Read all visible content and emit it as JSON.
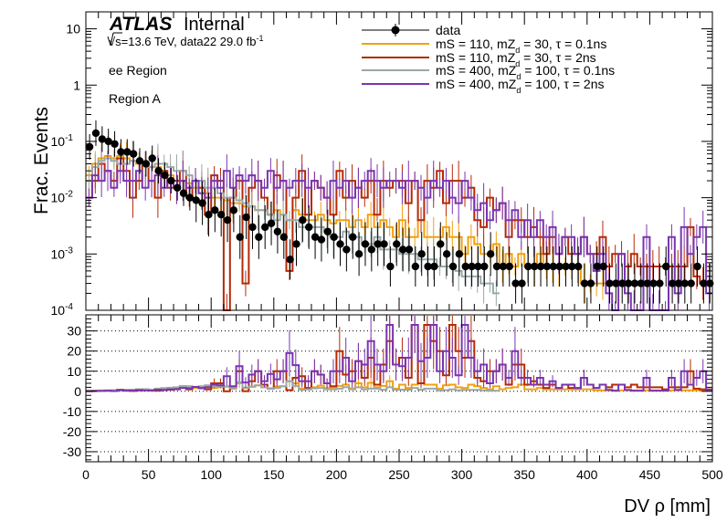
{
  "chart_data": [
    {
      "type": "histogram",
      "panel": "main",
      "title": "",
      "brand": "ATLAS",
      "status": "Internal",
      "energy_text": "√s=13.6 TeV, data22 29.0 fb",
      "energy_exp": "-1",
      "annotations": [
        "ee Region",
        "Region A"
      ],
      "ylabel": "Frac. Events",
      "yscale": "log",
      "ylim": [
        0.0001,
        20
      ],
      "y_ticks": [
        {
          "value": 0.0001,
          "base": "10",
          "exp": "-4"
        },
        {
          "value": 0.001,
          "base": "10",
          "exp": "-3"
        },
        {
          "value": 0.01,
          "base": "10",
          "exp": "-2"
        },
        {
          "value": 0.1,
          "base": "10",
          "exp": "-1"
        },
        {
          "value": 1,
          "base": "1",
          "exp": ""
        },
        {
          "value": 10,
          "base": "10",
          "exp": ""
        }
      ],
      "xlim": [
        0,
        500
      ],
      "legend_position": "top-right",
      "series": [
        {
          "name": "data",
          "style": "points",
          "color": "#000000",
          "x": [
            3,
            8,
            13,
            18,
            23,
            28,
            33,
            38,
            43,
            48,
            53,
            58,
            63,
            68,
            73,
            78,
            83,
            88,
            93,
            98,
            103,
            108,
            113,
            118,
            123,
            128,
            133,
            138,
            143,
            148,
            153,
            158,
            163,
            168,
            173,
            178,
            183,
            188,
            193,
            198,
            203,
            208,
            213,
            218,
            223,
            228,
            233,
            238,
            243,
            248,
            253,
            258,
            263,
            268,
            273,
            278,
            283,
            288,
            293,
            298,
            303,
            308,
            313,
            318,
            323,
            328,
            333,
            338,
            343,
            348,
            353,
            358,
            363,
            368,
            373,
            378,
            383,
            388,
            393,
            398,
            403,
            408,
            413,
            418,
            423,
            428,
            433,
            438,
            443,
            448,
            453,
            458,
            463,
            468,
            473,
            478,
            483,
            488,
            493,
            498
          ],
          "values": [
            0.08,
            0.14,
            0.11,
            0.1,
            0.09,
            0.065,
            0.065,
            0.06,
            0.045,
            0.04,
            0.05,
            0.03,
            0.025,
            0.02,
            0.015,
            0.012,
            0.01,
            0.009,
            0.008,
            0.005,
            0.006,
            0.005,
            0.004,
            0.006,
            0.002,
            0.0045,
            0.003,
            0.002,
            0.003,
            0.0035,
            0.0025,
            0.002,
            0.0008,
            0.0015,
            0.004,
            0.003,
            0.002,
            0.0018,
            0.0025,
            0.002,
            0.0015,
            0.0012,
            0.002,
            0.001,
            0.0015,
            0.0012,
            0.0015,
            0.0015,
            0.0006,
            0.0015,
            0.0012,
            0.0012,
            0.0006,
            0.001,
            0.0006,
            0.0006,
            0.0015,
            0.001,
            0.0006,
            0.001,
            0.0006,
            0.0006,
            0.0006,
            0.0006,
            0.001,
            0.0006,
            0.0006,
            0.0006,
            0.0003,
            0.0003,
            0.0006,
            0.0006,
            0.0006,
            0.0006,
            0.0006,
            0.0006,
            0.0006,
            0.0006,
            0.0006,
            0.0003,
            0.0003,
            0.0006,
            0.0006,
            0.0003,
            0.0003,
            0.0003,
            0.0003,
            0.0003,
            0.0003,
            0.0003,
            0.0003,
            0.0003,
            0.0006,
            0.0003,
            0.0003,
            0.0003,
            0.0003,
            0.0006,
            0.0003,
            0.0003
          ]
        },
        {
          "name_parts": [
            "mS = 110, mZ",
            "d",
            " = 30, τ = 0.1ns"
          ],
          "style": "step",
          "color": "#f2a010",
          "values": [
            0.025,
            0.04,
            0.05,
            0.055,
            0.05,
            0.055,
            0.05,
            0.045,
            0.04,
            0.04,
            0.035,
            0.035,
            0.03,
            0.025,
            0.02,
            0.02,
            0.018,
            0.015,
            0.015,
            0.012,
            0.01,
            0.01,
            0.009,
            0.008,
            0.008,
            0.007,
            0.007,
            0.006,
            0.006,
            0.005,
            0.006,
            0.005,
            0.004,
            0.006,
            0.005,
            0.004,
            0.004,
            0.005,
            0.004,
            0.0035,
            0.004,
            0.004,
            0.003,
            0.004,
            0.003,
            0.005,
            0.003,
            0.004,
            0.003,
            0.002,
            0.004,
            0.002,
            0.002,
            0.004,
            0.002,
            0.002,
            0.002,
            0.003,
            0.002,
            0.002,
            0.001,
            0.002,
            0.0015,
            0.001,
            0.001,
            0.0015,
            0.0006,
            0.001,
            0.0006,
            0.001,
            0.0006,
            0.0006,
            0.001,
            0.0006,
            0.0006,
            0.0006,
            0.0006,
            0.0006,
            0.0006,
            0.0003,
            0.0003,
            0.0003,
            0.0003
          ]
        },
        {
          "name_parts": [
            "mS = 110, mZ",
            "d",
            " = 30, τ = 2ns"
          ],
          "style": "step",
          "color": "#b52a06",
          "values": [
            0.01,
            0.02,
            0.04,
            0.03,
            0.02,
            0.05,
            0.03,
            0.01,
            0.02,
            0.04,
            0.02,
            0.01,
            0.03,
            0.015,
            0.02,
            0.03,
            0.01,
            0.02,
            0.015,
            0.005,
            0.025,
            0.02,
            0.0001,
            0.01,
            0.02,
            0.0003,
            0.015,
            0.02,
            0.01,
            0.005,
            0.025,
            0.02,
            0.0005,
            0.01,
            0.03,
            0.005,
            0.02,
            0.015,
            0.01,
            0.005,
            0.03,
            0.01,
            0.02,
            0.015,
            0.01,
            0.02,
            0.005,
            0.02,
            0.015,
            0.02,
            0.02,
            0.008,
            0.02,
            0.004,
            0.02,
            0.015,
            0.03,
            0.008,
            0.02,
            0.02,
            0.01,
            0.015,
            0.004,
            0.003,
            0.01,
            0.006,
            0.008,
            0.002,
            0.004,
            0.004,
            0.002,
            0.003,
            0.002,
            0.001,
            0.002,
            0.001,
            0.002,
            0.001,
            0.001,
            0.002,
            0.001,
            0.001,
            0.002,
            0.0006,
            0.001,
            0.001,
            0.0006,
            0.001,
            0.0006,
            0.0006,
            0.0006,
            0.0006,
            0.0006,
            0.0006,
            0.0006,
            0.0006,
            0.003,
            0.0004,
            0.0003,
            0.0003
          ]
        },
        {
          "name_parts": [
            "mS = 400, mZ",
            "d",
            " = 100, τ = 0.1ns"
          ],
          "style": "step",
          "color": "#9aa8a8",
          "values": [
            0.02,
            0.035,
            0.045,
            0.05,
            0.045,
            0.04,
            0.04,
            0.045,
            0.045,
            0.04,
            0.035,
            0.04,
            0.04,
            0.035,
            0.03,
            0.03,
            0.025,
            0.02,
            0.02,
            0.015,
            0.015,
            0.012,
            0.01,
            0.01,
            0.009,
            0.008,
            0.007,
            0.006,
            0.006,
            0.005,
            0.004,
            0.005,
            0.004,
            0.004,
            0.003,
            0.003,
            0.003,
            0.003,
            0.0025,
            0.002,
            0.002,
            0.0025,
            0.002,
            0.002,
            0.0015,
            0.0015,
            0.002,
            0.0012,
            0.0012,
            0.0012,
            0.001,
            0.001,
            0.001,
            0.0008,
            0.0008,
            0.0008,
            0.0006,
            0.0006,
            0.0006,
            0.0005,
            0.0004,
            0.0004,
            0.0004,
            0.0003,
            0.0003,
            0.0002
          ]
        },
        {
          "name_parts": [
            "mS = 400, mZ",
            "d",
            " = 100, τ = 2ns"
          ],
          "style": "step",
          "color": "#7a35b0",
          "values": [
            0.01,
            0.025,
            0.02,
            0.03,
            0.015,
            0.03,
            0.02,
            0.02,
            0.03,
            0.015,
            0.02,
            0.025,
            0.015,
            0.02,
            0.015,
            0.02,
            0.015,
            0.02,
            0.012,
            0.01,
            0.02,
            0.015,
            0.03,
            0.015,
            0.025,
            0.02,
            0.025,
            0.02,
            0.015,
            0.03,
            0.015,
            0.02,
            0.015,
            0.02,
            0.02,
            0.015,
            0.02,
            0.015,
            0.01,
            0.02,
            0.015,
            0.02,
            0.01,
            0.015,
            0.02,
            0.03,
            0.02,
            0.015,
            0.02,
            0.02,
            0.015,
            0.02,
            0.02,
            0.015,
            0.01,
            0.02,
            0.015,
            0.02,
            0.01,
            0.008,
            0.02,
            0.01,
            0.006,
            0.008,
            0.004,
            0.006,
            0.008,
            0.004,
            0.006,
            0.002,
            0.004,
            0.002,
            0.004,
            0.002,
            0.003,
            0.001,
            0.002,
            0.002,
            0.001,
            0.002,
            0.001,
            0.0005,
            0.001,
            0.0002,
            0.0001,
            0.001,
            0.0002,
            0.0001,
            0.0001,
            0.002,
            0.0001,
            0.0001,
            0.0001,
            0.002,
            0.0002,
            0.003,
            0.001,
            0.002,
            0.003,
            0.0002
          ]
        }
      ]
    },
    {
      "type": "histogram",
      "panel": "ratio",
      "ylim": [
        -35,
        38
      ],
      "y_ticks": [
        "-30",
        "-20",
        "-10",
        "0",
        "10",
        "20",
        "30"
      ],
      "grid_lines": [
        -30,
        -20,
        -10,
        0,
        10,
        20,
        30
      ],
      "xlabel": "DV ρ [mm]",
      "xlim": [
        0,
        500
      ],
      "x_ticks": [
        "0",
        "50",
        "100",
        "150",
        "200",
        "250",
        "300",
        "350",
        "400",
        "450",
        "500"
      ],
      "series": [
        {
          "name": "mS = 110, mZd = 30, τ = 0.1ns",
          "color": "#f2a010",
          "values": [
            0.3,
            0.3,
            0.4,
            0.5,
            0.6,
            0.8,
            0.8,
            0.8,
            0.9,
            1,
            0.7,
            1.2,
            1.2,
            1.3,
            1.3,
            1.7,
            1.8,
            1.7,
            1.9,
            2.4,
            1.7,
            2,
            2.3,
            1.3,
            4,
            1.6,
            2.3,
            3,
            2,
            1.4,
            2.4,
            2.5,
            5,
            4,
            1.3,
            1.3,
            2,
            2.8,
            1.6,
            1.8,
            2.7,
            3.3,
            1.5,
            4,
            2,
            4.2,
            2,
            2.7,
            5,
            1.3,
            3.3,
            1.7,
            3.3,
            4,
            3.3,
            3.3,
            1.3,
            3,
            3.3,
            2,
            1.7,
            3.3,
            2.5,
            1.7,
            1,
            2.5,
            1,
            1.7,
            2,
            3.3,
            1,
            1,
            1.7,
            1,
            1,
            1,
            1,
            1,
            1,
            1,
            1,
            0.5,
            0.5,
            0.5,
            0.5,
            0.5,
            0.5,
            0.5,
            0.5,
            0.5,
            0.5,
            0.5,
            0.5,
            0.5,
            0.5,
            0.5,
            0.5,
            0.5,
            0.5,
            0.5
          ]
        },
        {
          "name": "mS = 110, mZd = 30, τ = 2ns",
          "color": "#b52a06",
          "values": [
            0.1,
            0.15,
            0.35,
            0.3,
            0.2,
            0.8,
            0.5,
            0.2,
            0.4,
            1,
            0.4,
            0.3,
            1.2,
            0.8,
            1.3,
            2.5,
            1,
            2.2,
            1.9,
            1,
            4,
            4,
            0,
            1.7,
            10,
            0.1,
            5,
            10,
            3.3,
            1.4,
            10,
            10,
            0.6,
            6.7,
            7.5,
            1.7,
            10,
            8.3,
            4,
            2.5,
            20,
            8.3,
            10,
            15,
            6.7,
            16.7,
            3.3,
            13.3,
            25,
            13.3,
            16.7,
            6.7,
            33,
            4,
            33,
            25,
            20,
            8,
            33,
            20,
            16.7,
            25,
            6.7,
            5,
            10,
            10,
            13.3,
            3.3,
            13.3,
            13.3,
            3.3,
            5,
            3.3,
            1.7,
            3.3,
            1.7,
            3.3,
            1.7,
            1.7,
            6.7,
            3.3,
            1.7,
            3.3,
            2,
            3.3,
            3.3,
            2,
            3.3,
            2,
            2,
            2,
            2,
            1,
            2,
            2,
            2,
            10,
            1.3,
            1,
            1
          ]
        },
        {
          "name": "mS = 400, mZd = 100, τ = 0.1ns",
          "color": "#9aa8a8",
          "values": [
            0.25,
            0.25,
            0.4,
            0.5,
            0.5,
            0.6,
            0.6,
            0.75,
            1,
            1,
            0.7,
            1.3,
            1.6,
            1.75,
            2,
            2.5,
            2.5,
            2.2,
            2.5,
            3,
            2.5,
            2.4,
            2.5,
            1.7,
            4.5,
            1.8,
            2.3,
            3,
            2,
            1.4,
            1.6,
            2.5,
            5,
            2.7,
            0.8,
            1,
            1.5,
            1.7,
            1,
            1,
            1.3,
            2.1,
            1,
            2,
            1,
            1.3,
            1.3,
            0.8,
            2,
            0.8,
            0.8,
            0.8,
            1.7,
            0.8,
            1.3,
            1.3,
            0.4,
            0.6,
            1,
            0.5,
            0.7,
            0.7,
            0.7,
            0.5,
            0.3,
            0.3
          ]
        },
        {
          "name": "mS = 400, mZd = 100, τ = 2ns",
          "color": "#7a35b0",
          "values": [
            0.1,
            0.2,
            0.2,
            0.3,
            0.15,
            0.45,
            0.3,
            0.35,
            0.65,
            0.4,
            0.4,
            0.8,
            0.6,
            1,
            1,
            1.7,
            1.5,
            2.2,
            1.5,
            2,
            3.3,
            3,
            7.5,
            2.5,
            12.5,
            4.4,
            8.3,
            10,
            5,
            8.6,
            6,
            10,
            19,
            13,
            5,
            5,
            10,
            8.3,
            4,
            10,
            10,
            16.7,
            5,
            15,
            13.3,
            25,
            13.3,
            10,
            33,
            13.3,
            12.5,
            16.7,
            33,
            15,
            16.7,
            33,
            10,
            20,
            16.7,
            8,
            33,
            16.7,
            10,
            13.3,
            4,
            10,
            13.3,
            6.7,
            20,
            6.7,
            6.7,
            3.3,
            6.7,
            3.3,
            5,
            1.7,
            3.3,
            3.3,
            1.7,
            6.7,
            3.3,
            1.7,
            3.3,
            0.7,
            0.3,
            3.3,
            0.7,
            0.3,
            0.3,
            6.7,
            0.3,
            0.3,
            0.3,
            6.7,
            0.7,
            10,
            3.3,
            6.7,
            10,
            0.7
          ]
        }
      ]
    }
  ]
}
